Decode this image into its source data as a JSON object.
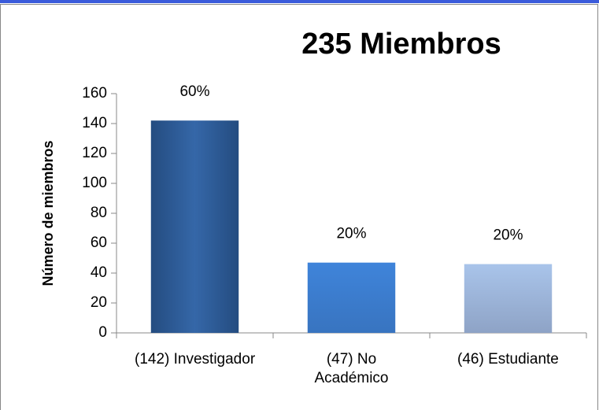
{
  "chart_data": {
    "type": "bar",
    "title": "235 Miembros",
    "y_label": "Número de miembros",
    "categories": [
      "(142) Investigador",
      "(47) No Académico",
      "(46) Estudiante"
    ],
    "values": [
      142,
      47,
      46
    ],
    "colors": [
      "#2f5f9e",
      "#3e7fd2",
      "#a3bde3"
    ],
    "annotations": [
      "60%",
      "20%",
      "20%"
    ],
    "ylim": [
      0,
      160
    ],
    "yticks": [
      0,
      20,
      40,
      60,
      80,
      100,
      120,
      140,
      160
    ],
    "grid": false
  }
}
